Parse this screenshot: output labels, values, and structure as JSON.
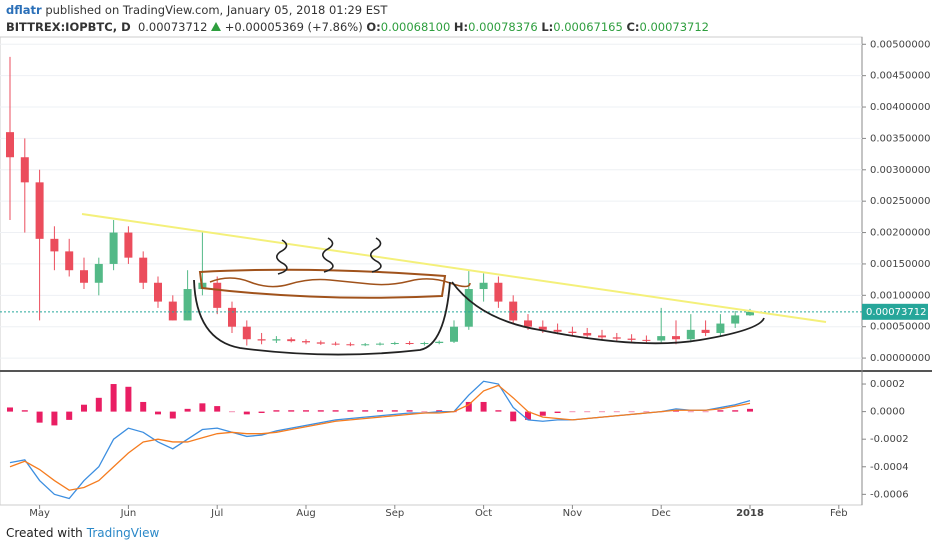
{
  "header": {
    "author": "dflatr",
    "published": "published on TradingView.com, January 05, 2018 01:29 EST",
    "symbol": "BITTREX:IOPBTC, D",
    "price": "0.00073712",
    "change": "+0.00005369 (+7.86%)",
    "open_label": "O:",
    "open": "0.00068100",
    "high_label": "H:",
    "high": "0.00078376",
    "low_label": "L:",
    "low": "0.00067165",
    "close_label": "C:",
    "close": "0.00073712"
  },
  "footer": {
    "created": "Created with",
    "brand": "TradingView"
  },
  "chart_data": [
    {
      "type": "candlestick",
      "up_color": "#53b987",
      "down_color": "#eb4d5c",
      "grid": true,
      "last_price_label": "0.00073712",
      "last_price_color": "#26a69a",
      "categories": [
        null,
        null,
        "May",
        null,
        null,
        null,
        null,
        null,
        "Jun",
        null,
        null,
        null,
        null,
        null,
        "Jul",
        null,
        null,
        null,
        null,
        null,
        "Aug",
        null,
        null,
        null,
        null,
        null,
        "Sep",
        null,
        null,
        null,
        null,
        null,
        "Oct",
        null,
        null,
        null,
        null,
        null,
        "Nov",
        null,
        null,
        null,
        null,
        null,
        "Dec",
        null,
        null,
        null,
        null,
        null,
        "2018",
        null,
        null,
        null,
        null,
        null,
        "Feb"
      ],
      "open": [
        0.0036,
        0.0032,
        0.0028,
        0.0019,
        0.0017,
        0.0014,
        0.0012,
        0.0015,
        0.002,
        0.0016,
        0.0012,
        0.0009,
        0.0006,
        0.0011,
        0.0012,
        0.0008,
        0.0005,
        0.0003,
        0.00028,
        0.0003,
        0.00027,
        0.00025,
        0.00023,
        0.00022,
        0.00021,
        0.00022,
        0.00023,
        0.00024,
        0.00023,
        0.00024,
        0.00026,
        0.0005,
        0.0011,
        0.0012,
        0.0009,
        0.0006,
        0.0005,
        0.00045,
        0.00042,
        0.0004,
        0.00036,
        0.00033,
        0.00031,
        0.00029,
        0.00028,
        0.00035,
        0.0003,
        0.00045,
        0.0004,
        0.00055,
        0.000681,
        null,
        null,
        null,
        null,
        null,
        null
      ],
      "high": [
        0.0048,
        0.0035,
        0.003,
        0.0021,
        0.0019,
        0.0016,
        0.0016,
        0.0022,
        0.0021,
        0.0017,
        0.0013,
        0.001,
        0.0014,
        0.002,
        0.0013,
        0.0009,
        0.0006,
        0.0004,
        0.00035,
        0.00033,
        0.0003,
        0.00028,
        0.00026,
        0.00025,
        0.00024,
        0.00025,
        0.00026,
        0.00027,
        0.00026,
        0.00028,
        0.0006,
        0.0014,
        0.00135,
        0.0013,
        0.001,
        0.0007,
        0.0006,
        0.00055,
        0.0005,
        0.00048,
        0.00045,
        0.0004,
        0.00038,
        0.00036,
        0.0008,
        0.0006,
        0.0007,
        0.0006,
        0.0007,
        0.00075,
        0.00078376,
        null,
        null,
        null,
        null,
        null,
        null
      ],
      "low": [
        0.0022,
        0.002,
        0.0006,
        0.0014,
        0.0013,
        0.0011,
        0.001,
        0.0014,
        0.0015,
        0.0011,
        0.0008,
        0.0006,
        0.0006,
        0.001,
        0.0007,
        0.0004,
        0.0002,
        0.00022,
        0.00024,
        0.00025,
        0.00022,
        0.00021,
        0.0002,
        0.00019,
        0.00019,
        0.0002,
        0.00021,
        0.00021,
        0.0002,
        0.00022,
        0.00024,
        0.00045,
        0.0009,
        0.0008,
        0.00055,
        0.00045,
        0.0004,
        0.00038,
        0.00035,
        0.00033,
        0.0003,
        0.00028,
        0.00026,
        0.00025,
        0.00025,
        0.00022,
        0.00025,
        0.00035,
        0.00035,
        0.00048,
        0.00067165,
        null,
        null,
        null,
        null,
        null,
        null
      ],
      "close": [
        0.0032,
        0.0028,
        0.0019,
        0.0017,
        0.0014,
        0.0012,
        0.0015,
        0.002,
        0.0016,
        0.0012,
        0.0009,
        0.0006,
        0.0011,
        0.0012,
        0.0008,
        0.0005,
        0.0003,
        0.00028,
        0.0003,
        0.00027,
        0.00025,
        0.00023,
        0.00022,
        0.00021,
        0.00022,
        0.00023,
        0.00024,
        0.00023,
        0.00024,
        0.00026,
        0.0005,
        0.0011,
        0.0012,
        0.0009,
        0.0006,
        0.0005,
        0.00045,
        0.00042,
        0.0004,
        0.00036,
        0.00033,
        0.00031,
        0.00029,
        0.00028,
        0.00035,
        0.0003,
        0.00045,
        0.0004,
        0.00055,
        0.00068,
        0.00073712,
        null,
        null,
        null,
        null,
        null,
        null
      ],
      "ylim": [
        -0.00019,
        0.0051
      ],
      "yticks": [
        {
          "value": 0,
          "label": "0.00000000"
        },
        {
          "value": 0.0005,
          "label": "0.00050000"
        },
        {
          "value": 0.001,
          "label": "0.00100000"
        },
        {
          "value": 0.0015,
          "label": "0.00150000"
        },
        {
          "value": 0.002,
          "label": "0.00200000"
        },
        {
          "value": 0.0025,
          "label": "0.00250000"
        },
        {
          "value": 0.003,
          "label": "0.00300000"
        },
        {
          "value": 0.0035,
          "label": "0.00350000"
        },
        {
          "value": 0.004,
          "label": "0.00400000"
        },
        {
          "value": 0.0045,
          "label": "0.00450000"
        },
        {
          "value": 0.005,
          "label": "0.00500000"
        }
      ]
    },
    {
      "type": "macd",
      "ylim": [
        -0.00067,
        0.00028
      ],
      "yticks": [
        -0.0006,
        -0.0004,
        -0.0002,
        {
          "value": 0,
          "label": "0.0000"
        },
        0.0002
      ],
      "histogram": {
        "color": "#e91e63",
        "values": [
          3e-05,
          1e-05,
          -8e-05,
          -0.0001,
          -6e-05,
          5e-05,
          0.0001,
          0.0002,
          0.00018,
          7e-05,
          -2e-05,
          -5e-05,
          2e-05,
          6e-05,
          4e-05,
          0,
          -2e-05,
          -1e-05,
          1e-05,
          1e-05,
          1e-05,
          1e-05,
          1e-05,
          1e-05,
          1e-05,
          1e-05,
          1e-05,
          1e-05,
          0,
          1e-05,
          0,
          7e-05,
          7e-05,
          1e-05,
          -7e-05,
          -6e-05,
          -3e-05,
          -1e-05,
          0,
          0,
          0,
          0,
          0,
          0,
          0,
          1e-05,
          0,
          0,
          1e-05,
          1e-05,
          2e-05,
          null,
          null,
          null,
          null,
          null,
          null
        ]
      },
      "series": [
        {
          "color": "#3c8ee0",
          "values": [
            -0.00037,
            -0.00035,
            -0.0005,
            -0.0006,
            -0.00063,
            -0.0005,
            -0.0004,
            -0.0002,
            -0.00012,
            -0.00015,
            -0.00022,
            -0.00027,
            -0.0002,
            -0.00013,
            -0.00012,
            -0.00015,
            -0.00018,
            -0.00017,
            -0.00014,
            -0.00012,
            -0.0001,
            -8e-05,
            -6e-05,
            -5e-05,
            -4e-05,
            -3e-05,
            -2e-05,
            -1e-05,
            -1e-05,
            0,
            0,
            0.00012,
            0.00022,
            0.0002,
            3e-05,
            -6e-05,
            -7e-05,
            -6e-05,
            -6e-05,
            -5e-05,
            -4e-05,
            -3e-05,
            -2e-05,
            -1e-05,
            0,
            2e-05,
            1e-05,
            1e-05,
            3e-05,
            5e-05,
            8e-05,
            null,
            null,
            null,
            null,
            null,
            null
          ]
        },
        {
          "color": "#f57c1f",
          "values": [
            -0.0004,
            -0.00036,
            -0.00042,
            -0.0005,
            -0.00057,
            -0.00055,
            -0.0005,
            -0.0004,
            -0.0003,
            -0.00022,
            -0.0002,
            -0.00022,
            -0.00022,
            -0.00019,
            -0.00016,
            -0.00015,
            -0.00016,
            -0.00016,
            -0.00015,
            -0.00013,
            -0.00011,
            -9e-05,
            -7e-05,
            -6e-05,
            -5e-05,
            -4e-05,
            -3e-05,
            -2e-05,
            -1e-05,
            -1e-05,
            0,
            5e-05,
            0.00015,
            0.00019,
            0.0001,
            0,
            -4e-05,
            -5e-05,
            -6e-05,
            -5e-05,
            -4e-05,
            -3e-05,
            -2e-05,
            -1e-05,
            0,
            1e-05,
            1e-05,
            1e-05,
            2e-05,
            4e-05,
            6e-05,
            null,
            null,
            null,
            null,
            null,
            null
          ]
        }
      ]
    }
  ]
}
